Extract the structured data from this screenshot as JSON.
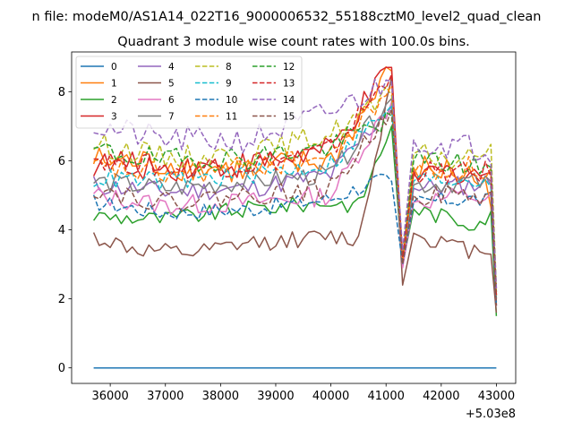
{
  "chart_data": {
    "type": "line",
    "suptitle": "n file: modeM0/AS1A14_022T16_9000006532_55188cztM0_level2_quad_clean",
    "title": "Quadrant 3 module wise count rates with 100.0s bins.",
    "x_offset_label": "+5.03e8",
    "xlim": [
      35300,
      43350
    ],
    "ylim": [
      -0.45,
      9.15
    ],
    "xticks": [
      36000,
      37000,
      38000,
      39000,
      40000,
      41000,
      42000,
      43000
    ],
    "xtick_labels": [
      "36000",
      "37000",
      "38000",
      "39000",
      "40000",
      "41000",
      "42000",
      "43000"
    ],
    "yticks": [
      0,
      2,
      4,
      6,
      8
    ],
    "ytick_labels": [
      "0",
      "2",
      "4",
      "6",
      "8"
    ],
    "grid": false,
    "legend": {
      "placement": "top-left",
      "columns": 4
    },
    "series": [
      {
        "name": "0",
        "color": "#1f77b4",
        "style": "solid",
        "anchors": [
          [
            35700,
            0
          ],
          [
            43000,
            0
          ]
        ],
        "amp": 0
      },
      {
        "name": "1",
        "color": "#ff7f0e",
        "style": "solid",
        "anchors": [
          [
            35700,
            6.0
          ],
          [
            37000,
            5.9
          ],
          [
            38500,
            5.7
          ],
          [
            40000,
            6.0
          ],
          [
            41100,
            8.6
          ],
          [
            41300,
            3.2
          ],
          [
            41500,
            5.8
          ],
          [
            42500,
            5.6
          ],
          [
            42950,
            5.0
          ],
          [
            43000,
            2.1
          ]
        ],
        "amp": 0.45
      },
      {
        "name": "2",
        "color": "#2ca02c",
        "style": "solid",
        "anchors": [
          [
            35700,
            4.4
          ],
          [
            37000,
            4.3
          ],
          [
            38500,
            4.6
          ],
          [
            40000,
            4.8
          ],
          [
            40500,
            4.7
          ],
          [
            41100,
            7.0
          ],
          [
            41300,
            3.0
          ],
          [
            41500,
            4.6
          ],
          [
            42500,
            4.2
          ],
          [
            42950,
            4.4
          ],
          [
            43000,
            1.5
          ]
        ],
        "amp": 0.25
      },
      {
        "name": "3",
        "color": "#d62728",
        "style": "solid",
        "anchors": [
          [
            35700,
            5.9
          ],
          [
            37000,
            5.8
          ],
          [
            38500,
            5.9
          ],
          [
            40000,
            6.3
          ],
          [
            41100,
            8.7
          ],
          [
            41300,
            3.1
          ],
          [
            41500,
            5.6
          ],
          [
            42500,
            5.7
          ],
          [
            42950,
            5.6
          ],
          [
            43000,
            2.0
          ]
        ],
        "amp": 0.4
      },
      {
        "name": "4",
        "color": "#9467bd",
        "style": "solid",
        "anchors": [
          [
            35700,
            5.3
          ],
          [
            37000,
            5.1
          ],
          [
            38500,
            5.2
          ],
          [
            40000,
            5.6
          ],
          [
            41100,
            7.6
          ],
          [
            41300,
            3.0
          ],
          [
            41500,
            5.2
          ],
          [
            42500,
            5.3
          ],
          [
            42950,
            5.4
          ],
          [
            43000,
            1.8
          ]
        ],
        "amp": 0.3
      },
      {
        "name": "5",
        "color": "#8c564b",
        "style": "solid",
        "anchors": [
          [
            35700,
            3.8
          ],
          [
            36500,
            3.4
          ],
          [
            37500,
            3.3
          ],
          [
            38500,
            3.6
          ],
          [
            40000,
            3.8
          ],
          [
            40500,
            3.7
          ],
          [
            41100,
            8.4
          ],
          [
            41300,
            2.4
          ],
          [
            41500,
            3.9
          ],
          [
            42500,
            3.4
          ],
          [
            42950,
            3.5
          ],
          [
            43000,
            1.6
          ]
        ],
        "amp": 0.25
      },
      {
        "name": "6",
        "color": "#e377c2",
        "style": "solid",
        "anchors": [
          [
            35700,
            5.0
          ],
          [
            37000,
            4.7
          ],
          [
            38500,
            4.8
          ],
          [
            40000,
            5.0
          ],
          [
            41100,
            7.7
          ],
          [
            41300,
            2.9
          ],
          [
            41500,
            4.8
          ],
          [
            42500,
            5.0
          ],
          [
            42950,
            4.8
          ],
          [
            43000,
            1.8
          ]
        ],
        "amp": 0.3
      },
      {
        "name": "7",
        "color": "#7f7f7f",
        "style": "solid",
        "anchors": [
          [
            35700,
            5.4
          ],
          [
            37000,
            5.2
          ],
          [
            38500,
            5.4
          ],
          [
            40000,
            5.6
          ],
          [
            41100,
            7.8
          ],
          [
            41300,
            3.2
          ],
          [
            41500,
            5.3
          ],
          [
            42500,
            5.4
          ],
          [
            42950,
            5.3
          ],
          [
            43000,
            1.9
          ]
        ],
        "amp": 0.3
      },
      {
        "name": "8",
        "color": "#bcbd22",
        "style": "dashed",
        "anchors": [
          [
            35700,
            6.5
          ],
          [
            37000,
            6.1
          ],
          [
            38500,
            6.2
          ],
          [
            40000,
            6.8
          ],
          [
            41100,
            7.9
          ],
          [
            41300,
            3.3
          ],
          [
            41500,
            6.2
          ],
          [
            42500,
            6.0
          ],
          [
            42950,
            6.6
          ],
          [
            43000,
            2.3
          ]
        ],
        "amp": 0.35
      },
      {
        "name": "9",
        "color": "#17becf",
        "style": "dashed",
        "anchors": [
          [
            35700,
            5.5
          ],
          [
            37000,
            5.4
          ],
          [
            38500,
            5.6
          ],
          [
            40000,
            5.9
          ],
          [
            41100,
            7.6
          ],
          [
            41300,
            3.1
          ],
          [
            41500,
            5.4
          ],
          [
            42500,
            5.5
          ],
          [
            42950,
            5.4
          ],
          [
            43000,
            2.0
          ]
        ],
        "amp": 0.3
      },
      {
        "name": "10",
        "color": "#1f77b4",
        "style": "dashed",
        "anchors": [
          [
            35700,
            4.8
          ],
          [
            37000,
            4.5
          ],
          [
            38500,
            4.6
          ],
          [
            40000,
            4.9
          ],
          [
            40800,
            5.4
          ],
          [
            41100,
            5.4
          ],
          [
            41300,
            3.0
          ],
          [
            41500,
            4.8
          ],
          [
            42500,
            4.9
          ],
          [
            42950,
            4.8
          ],
          [
            43000,
            1.8
          ]
        ],
        "amp": 0.25
      },
      {
        "name": "11",
        "color": "#ff7f0e",
        "style": "dashed",
        "anchors": [
          [
            35700,
            5.8
          ],
          [
            37000,
            5.6
          ],
          [
            38500,
            5.8
          ],
          [
            40000,
            6.1
          ],
          [
            41100,
            8.2
          ],
          [
            41300,
            3.1
          ],
          [
            41500,
            5.6
          ],
          [
            42500,
            5.8
          ],
          [
            42950,
            5.6
          ],
          [
            43000,
            2.1
          ]
        ],
        "amp": 0.35
      },
      {
        "name": "12",
        "color": "#2ca02c",
        "style": "dashed",
        "anchors": [
          [
            35700,
            6.3
          ],
          [
            37000,
            6.0
          ],
          [
            38500,
            6.1
          ],
          [
            40000,
            6.4
          ],
          [
            41100,
            7.3
          ],
          [
            41300,
            3.2
          ],
          [
            41500,
            6.0
          ],
          [
            42500,
            5.9
          ],
          [
            42950,
            5.8
          ],
          [
            43000,
            2.2
          ]
        ],
        "amp": 0.35
      },
      {
        "name": "13",
        "color": "#d62728",
        "style": "dashed",
        "anchors": [
          [
            35700,
            6.1
          ],
          [
            37000,
            5.8
          ],
          [
            38500,
            5.9
          ],
          [
            40000,
            6.3
          ],
          [
            41100,
            8.5
          ],
          [
            41300,
            3.2
          ],
          [
            41500,
            5.7
          ],
          [
            42500,
            5.6
          ],
          [
            42950,
            5.7
          ],
          [
            43000,
            2.1
          ]
        ],
        "amp": 0.35
      },
      {
        "name": "14",
        "color": "#9467bd",
        "style": "dashed",
        "anchors": [
          [
            35700,
            7.0
          ],
          [
            37000,
            6.6
          ],
          [
            38500,
            6.6
          ],
          [
            40000,
            7.4
          ],
          [
            41100,
            8.3
          ],
          [
            41300,
            3.4
          ],
          [
            41500,
            6.6
          ],
          [
            42500,
            6.4
          ],
          [
            42950,
            6.3
          ],
          [
            43000,
            2.3
          ]
        ],
        "amp": 0.4
      },
      {
        "name": "15",
        "color": "#8c564b",
        "style": "dashed",
        "anchors": [
          [
            35700,
            5.2
          ],
          [
            37000,
            4.8
          ],
          [
            38500,
            5.0
          ],
          [
            40000,
            5.2
          ],
          [
            41100,
            7.5
          ],
          [
            41300,
            3.0
          ],
          [
            41500,
            5.0
          ],
          [
            42500,
            5.0
          ],
          [
            42950,
            4.9
          ],
          [
            43000,
            1.8
          ]
        ],
        "amp": 0.3
      }
    ]
  }
}
